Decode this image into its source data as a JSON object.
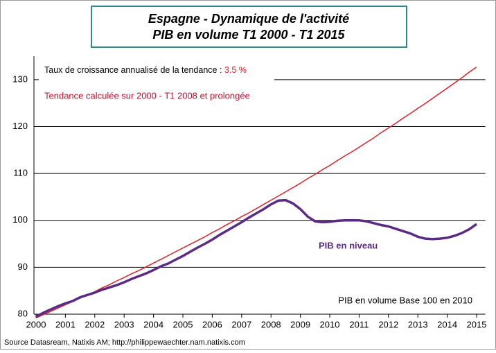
{
  "chart_data": {
    "type": "line",
    "title": "Espagne - Dynamique de l'activité",
    "subtitle": "PIB en volume T1 2000 - T1 2015",
    "annotations": {
      "rate_text": "Taux de croissance annualisé de la tendance : ",
      "rate_value": "3.5 %",
      "unit_note": "PIB en volume Base 100 en 2010"
    },
    "source": "Source Datasream, Natixis AM; http://philippewaechter.nam.natixis.com",
    "x": [
      2000,
      2000.25,
      2000.5,
      2000.75,
      2001,
      2001.25,
      2001.5,
      2001.75,
      2002,
      2002.25,
      2002.5,
      2002.75,
      2003,
      2003.25,
      2003.5,
      2003.75,
      2004,
      2004.25,
      2004.5,
      2004.75,
      2005,
      2005.25,
      2005.5,
      2005.75,
      2006,
      2006.25,
      2006.5,
      2006.75,
      2007,
      2007.25,
      2007.5,
      2007.75,
      2008,
      2008.25,
      2008.5,
      2008.75,
      2009,
      2009.25,
      2009.5,
      2009.75,
      2010,
      2010.25,
      2010.5,
      2010.75,
      2011,
      2011.25,
      2011.5,
      2011.75,
      2012,
      2012.25,
      2012.5,
      2012.75,
      2013,
      2013.25,
      2013.5,
      2013.75,
      2014,
      2014.25,
      2014.5,
      2014.75,
      2015
    ],
    "series": [
      {
        "name": "Tendance calculée  sur 2000 - T1 2008 et prolongée",
        "color": "#e0202a",
        "width": 1.5,
        "values": [
          79.2,
          79.9,
          80.6,
          81.3,
          82.0,
          82.7,
          83.4,
          84.1,
          84.8,
          85.6,
          86.3,
          87.1,
          87.8,
          88.6,
          89.3,
          90.1,
          90.9,
          91.7,
          92.5,
          93.3,
          94.1,
          94.9,
          95.7,
          96.5,
          97.4,
          98.2,
          99.1,
          99.9,
          100.8,
          101.6,
          102.5,
          103.4,
          104.3,
          105.2,
          106.1,
          107.0,
          107.9,
          108.9,
          109.8,
          110.8,
          111.7,
          112.7,
          113.7,
          114.6,
          115.6,
          116.6,
          117.6,
          118.7,
          119.7,
          120.7,
          121.8,
          122.8,
          123.9,
          124.9,
          126.0,
          127.1,
          128.2,
          129.3,
          130.4,
          131.6,
          132.7
        ]
      },
      {
        "name": "PIB en niveau",
        "color": "#5b2a86",
        "width": 3.5,
        "values": [
          79.5,
          80.3,
          81.0,
          81.7,
          82.3,
          82.8,
          83.6,
          84.1,
          84.6,
          85.2,
          85.7,
          86.2,
          86.8,
          87.5,
          88.1,
          88.7,
          89.4,
          90.2,
          90.8,
          91.6,
          92.4,
          93.3,
          94.2,
          95.0,
          95.9,
          96.9,
          97.8,
          98.7,
          99.6,
          100.6,
          101.5,
          102.4,
          103.4,
          104.2,
          104.3,
          103.6,
          102.4,
          100.8,
          99.8,
          99.6,
          99.7,
          99.9,
          100.0,
          100.0,
          100.0,
          99.8,
          99.4,
          99.0,
          98.7,
          98.2,
          97.7,
          97.2,
          96.5,
          96.1,
          96.0,
          96.1,
          96.3,
          96.7,
          97.3,
          98.1,
          99.2
        ]
      }
    ],
    "xlim": [
      2000,
      2015.25
    ],
    "ylim": [
      80,
      135
    ],
    "xticks": [
      2000,
      2001,
      2002,
      2003,
      2004,
      2005,
      2006,
      2007,
      2008,
      2009,
      2010,
      2011,
      2012,
      2013,
      2014,
      2015
    ],
    "yticks": [
      80,
      90,
      100,
      110,
      120,
      130
    ],
    "grid": true
  }
}
